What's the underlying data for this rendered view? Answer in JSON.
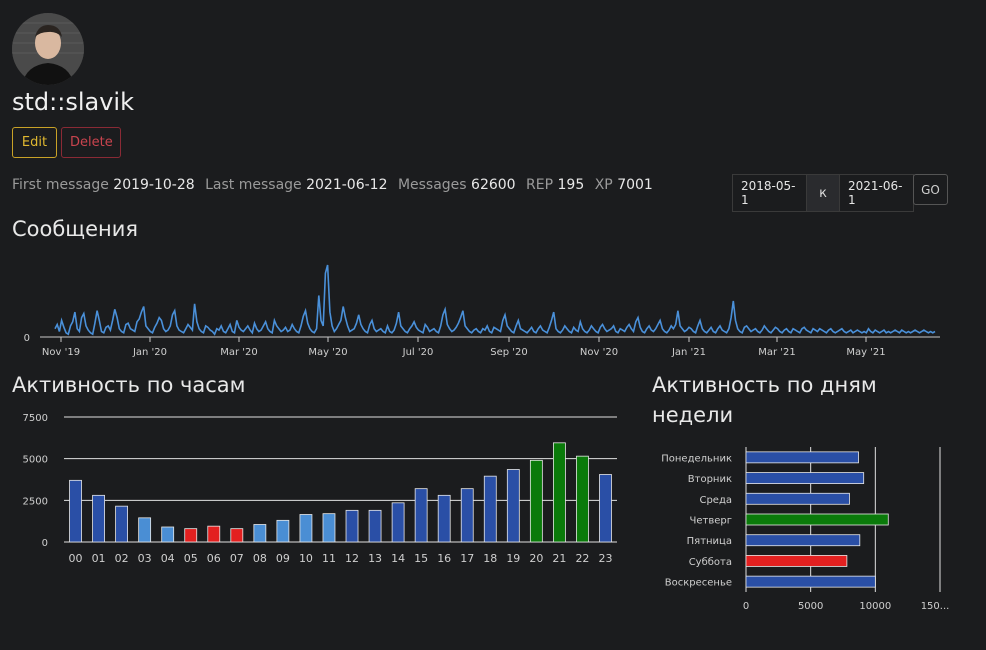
{
  "profile": {
    "name": "std::slavik",
    "edit_label": "Edit",
    "delete_label": "Delete"
  },
  "stats": {
    "first_message_label": "First message",
    "first_message": "2019-10-28",
    "last_message_label": "Last message",
    "last_message": "2021-06-12",
    "messages_label": "Messages",
    "messages": "62600",
    "rep_label": "REP",
    "rep": "195",
    "xp_label": "XP",
    "xp": "7001"
  },
  "date_filter": {
    "from": "2018-05-1",
    "separator": "к",
    "to": "2021-06-1",
    "go_label": "GO"
  },
  "sections": {
    "messages_title": "Сообщения",
    "hours_title": "Активность по часам",
    "days_title_line1": "Активность по дням",
    "days_title_line2": "недели"
  },
  "colors": {
    "background": "#1b1c1e",
    "line": "#4a90d9",
    "bar_blue": "#2a4fa6",
    "bar_light": "#4a8ed4",
    "bar_red": "#e32020",
    "bar_green": "#0a7a0a"
  },
  "chart_data": [
    {
      "type": "line",
      "title": "Сообщения",
      "x_tick_labels": [
        "Nov '19",
        "Jan '20",
        "Mar '20",
        "May '20",
        "Jul '20",
        "Sep '20",
        "Nov '20",
        "Jan '21",
        "Mar '21",
        "May '21"
      ],
      "y_tick_labels": [
        "0"
      ],
      "x_range": [
        "2019-10-28",
        "2021-06-12"
      ],
      "series": [
        {
          "values": [
            30,
            45,
            20,
            60,
            35,
            15,
            10,
            40,
            55,
            90,
            30,
            20,
            70,
            85,
            40,
            25,
            15,
            10,
            50,
            95,
            60,
            20,
            15,
            35,
            40,
            25,
            60,
            100,
            70,
            30,
            20,
            15,
            45,
            50,
            30,
            25,
            20,
            55,
            65,
            90,
            110,
            40,
            30,
            20,
            15,
            35,
            50,
            70,
            60,
            30,
            20,
            25,
            40,
            80,
            95,
            40,
            25,
            20,
            15,
            30,
            45,
            35,
            25,
            120,
            55,
            30,
            20,
            15,
            40,
            35,
            25,
            20,
            10,
            30,
            25,
            40,
            20,
            15,
            30,
            45,
            20,
            15,
            60,
            35,
            25,
            20,
            30,
            40,
            25,
            15,
            50,
            30,
            20,
            25,
            40,
            55,
            30,
            20,
            15,
            60,
            40,
            30,
            20,
            25,
            35,
            20,
            25,
            45,
            30,
            20,
            15,
            40,
            75,
            95,
            50,
            30,
            20,
            15,
            30,
            150,
            60,
            40,
            230,
            260,
            90,
            40,
            20,
            30,
            45,
            60,
            110,
            70,
            40,
            20,
            25,
            30,
            50,
            80,
            45,
            30,
            20,
            15,
            45,
            60,
            30,
            20,
            25,
            30,
            20,
            15,
            40,
            20,
            15,
            25,
            50,
            90,
            40,
            30,
            20,
            15,
            30,
            40,
            55,
            35,
            25,
            20,
            15,
            45,
            35,
            20,
            25,
            30,
            20,
            15,
            40,
            80,
            100,
            45,
            30,
            20,
            25,
            35,
            50,
            70,
            95,
            40,
            30,
            20,
            15,
            25,
            30,
            20,
            15,
            30,
            25,
            40,
            20,
            15,
            35,
            30,
            25,
            20,
            60,
            80,
            40,
            30,
            20,
            15,
            40,
            60,
            30,
            25,
            20,
            15,
            25,
            35,
            20,
            15,
            30,
            40,
            25,
            20,
            15,
            35,
            60,
            90,
            30,
            20,
            15,
            25,
            40,
            30,
            20,
            15,
            35,
            25,
            20,
            55,
            30,
            20,
            15,
            25,
            40,
            30,
            20,
            15,
            35,
            45,
            30,
            20,
            25,
            30,
            40,
            20,
            15,
            30,
            25,
            20,
            35,
            45,
            30,
            20,
            55,
            70,
            35,
            20,
            15,
            30,
            40,
            25,
            20,
            30,
            45,
            60,
            30,
            20,
            15,
            25,
            40,
            30,
            45,
            95,
            40,
            30,
            20,
            25,
            35,
            30,
            20,
            15,
            40,
            60,
            30,
            20,
            15,
            25,
            35,
            20,
            15,
            30,
            40,
            25,
            20,
            15,
            30,
            70,
            130,
            60,
            30,
            20,
            15,
            35,
            40,
            30,
            20,
            25,
            30,
            20,
            15,
            25,
            40,
            30,
            20,
            15,
            25,
            35,
            30,
            20,
            15,
            25,
            30,
            20,
            15,
            30,
            25,
            20,
            15,
            30,
            35,
            25,
            20,
            15,
            30,
            25,
            20,
            30,
            25,
            20,
            15,
            25,
            30,
            20,
            15,
            20,
            25,
            30,
            20,
            15,
            20,
            25,
            15,
            20,
            25,
            20,
            15,
            20,
            15,
            30,
            20,
            15,
            25,
            20,
            15,
            20,
            25,
            15,
            20,
            15,
            20,
            25,
            20,
            15,
            25,
            20,
            15,
            20,
            15,
            20,
            25,
            20,
            15,
            20,
            25,
            20,
            15,
            20,
            15,
            20
          ]
        }
      ]
    },
    {
      "type": "bar",
      "title": "Активность по часам",
      "categories": [
        "00",
        "01",
        "02",
        "03",
        "04",
        "05",
        "06",
        "07",
        "08",
        "09",
        "10",
        "11",
        "12",
        "13",
        "14",
        "15",
        "16",
        "17",
        "18",
        "19",
        "20",
        "21",
        "22",
        "23"
      ],
      "values": [
        3700,
        2800,
        2150,
        1450,
        900,
        800,
        950,
        800,
        1050,
        1300,
        1650,
        1700,
        1900,
        1900,
        2350,
        3200,
        2800,
        3200,
        3950,
        4350,
        4900,
        5950,
        5150,
        4050
      ],
      "bar_colors": [
        "#2a4fa6",
        "#2a4fa6",
        "#2a4fa6",
        "#4a8ed4",
        "#4a8ed4",
        "#e32020",
        "#e32020",
        "#e32020",
        "#4a8ed4",
        "#4a8ed4",
        "#4a8ed4",
        "#4a8ed4",
        "#2a4fa6",
        "#2a4fa6",
        "#2a4fa6",
        "#2a4fa6",
        "#2a4fa6",
        "#2a4fa6",
        "#2a4fa6",
        "#2a4fa6",
        "#0a7a0a",
        "#0a7a0a",
        "#0a7a0a",
        "#2a4fa6"
      ],
      "y_ticks": [
        "0",
        "2500",
        "5000",
        "7500"
      ],
      "ylim": [
        0,
        7500
      ],
      "grid": true
    },
    {
      "type": "bar",
      "orientation": "horizontal",
      "title": "Активность по дням недели",
      "categories": [
        "Понедельник",
        "Вторник",
        "Среда",
        "Четверг",
        "Пятница",
        "Суббота",
        "Воскресенье"
      ],
      "values": [
        8700,
        9100,
        8000,
        11000,
        8800,
        7800,
        10000
      ],
      "bar_colors": [
        "#2a4fa6",
        "#2a4fa6",
        "#2a4fa6",
        "#0a7a0a",
        "#2a4fa6",
        "#e32020",
        "#2a4fa6"
      ],
      "x_ticks": [
        "0",
        "5000",
        "10000",
        "150..."
      ],
      "xlim": [
        0,
        15000
      ],
      "grid": true
    }
  ]
}
